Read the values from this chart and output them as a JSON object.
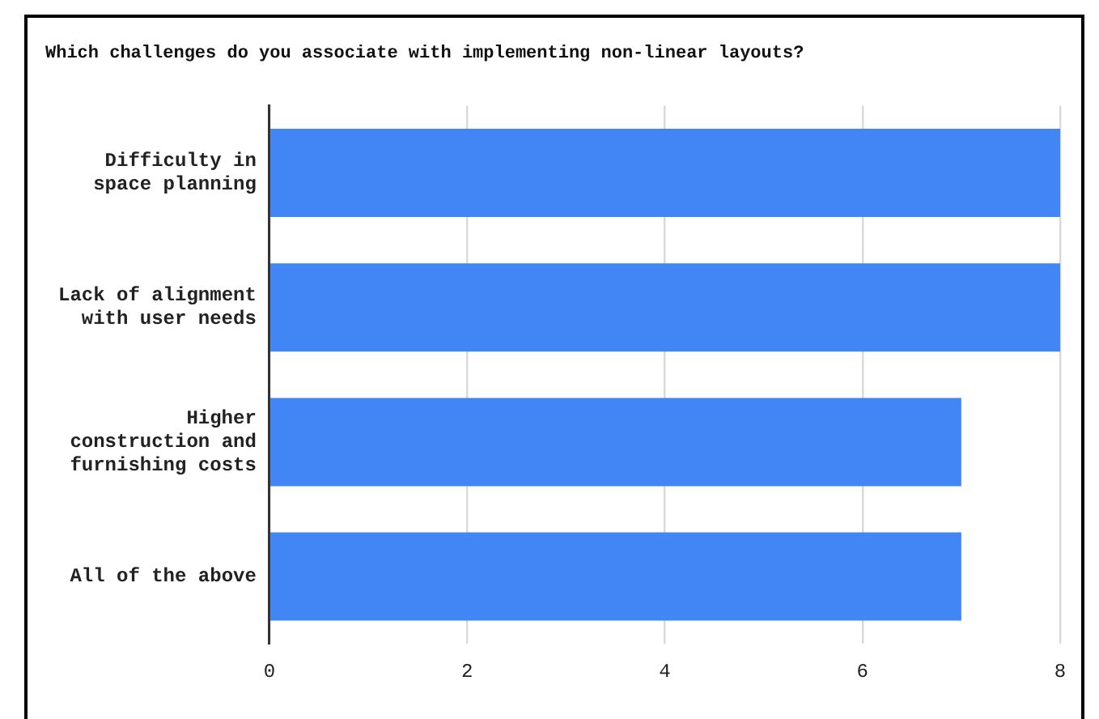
{
  "chart_data": {
    "type": "bar",
    "orientation": "horizontal",
    "title": "Which challenges do you associate with implementing non-linear layouts?",
    "categories": [
      "Difficulty in space planning",
      "Lack of alignment with user needs",
      "Higher construction and furnishing costs",
      "All of the above"
    ],
    "values": [
      8,
      8,
      7,
      7
    ],
    "color": "#4285f4",
    "xlim": [
      0,
      8
    ],
    "xticks": [
      0,
      2,
      4,
      6,
      8
    ],
    "grid": "x",
    "legend": false
  }
}
